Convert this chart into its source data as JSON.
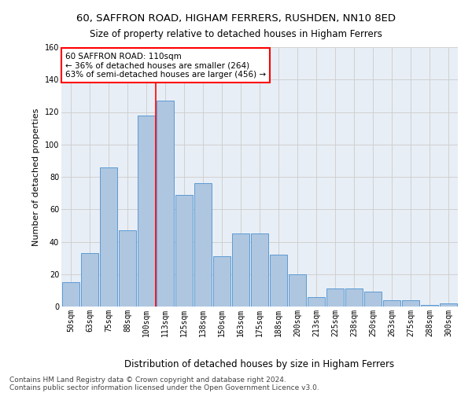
{
  "title1": "60, SAFFRON ROAD, HIGHAM FERRERS, RUSHDEN, NN10 8ED",
  "title2": "Size of property relative to detached houses in Higham Ferrers",
  "xlabel": "Distribution of detached houses by size in Higham Ferrers",
  "ylabel": "Number of detached properties",
  "categories": [
    "50sqm",
    "63sqm",
    "75sqm",
    "88sqm",
    "100sqm",
    "113sqm",
    "125sqm",
    "138sqm",
    "150sqm",
    "163sqm",
    "175sqm",
    "188sqm",
    "200sqm",
    "213sqm",
    "225sqm",
    "238sqm",
    "250sqm",
    "263sqm",
    "275sqm",
    "288sqm",
    "300sqm"
  ],
  "values": [
    15,
    33,
    86,
    47,
    118,
    127,
    69,
    76,
    31,
    45,
    45,
    32,
    20,
    6,
    11,
    11,
    9,
    4,
    4,
    1,
    2
  ],
  "bar_color": "#aec6e0",
  "bar_edge_color": "#5b9bd5",
  "property_line_x": 4.5,
  "annotation_text": "60 SAFFRON ROAD: 110sqm\n← 36% of detached houses are smaller (264)\n63% of semi-detached houses are larger (456) →",
  "annotation_box_color": "white",
  "annotation_box_edge": "red",
  "vline_color": "red",
  "ylim": [
    0,
    160
  ],
  "yticks": [
    0,
    20,
    40,
    60,
    80,
    100,
    120,
    140,
    160
  ],
  "grid_color": "#cccccc",
  "bg_color": "#e8eef5",
  "footer1": "Contains HM Land Registry data © Crown copyright and database right 2024.",
  "footer2": "Contains public sector information licensed under the Open Government Licence v3.0.",
  "title1_fontsize": 9.5,
  "title2_fontsize": 8.5,
  "xlabel_fontsize": 8.5,
  "ylabel_fontsize": 8,
  "tick_fontsize": 7,
  "annotation_fontsize": 7.5,
  "footer_fontsize": 6.5
}
